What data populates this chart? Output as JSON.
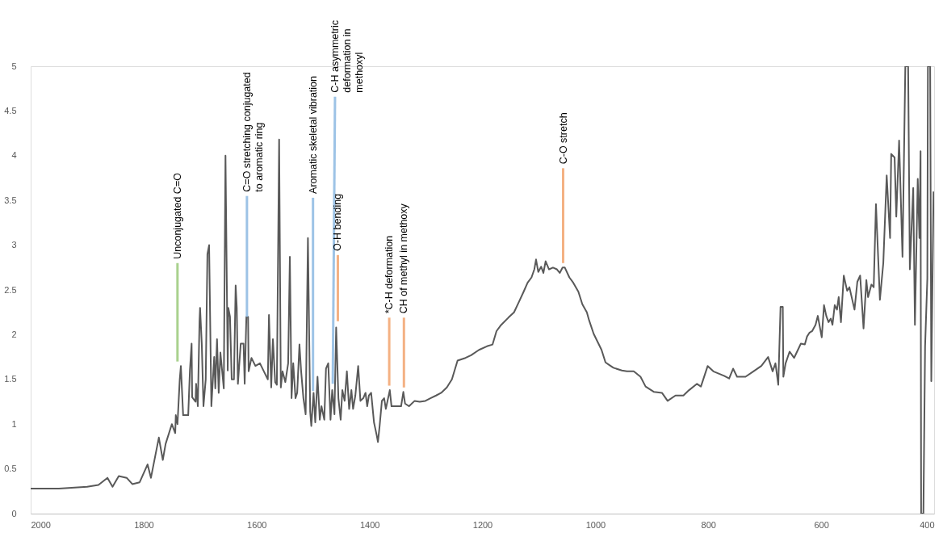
{
  "chart_data": {
    "type": "line",
    "xlim": [
      2000,
      400
    ],
    "xticks": [
      2000,
      1800,
      1600,
      1400,
      1200,
      1000,
      800,
      600,
      400
    ],
    "ylim": [
      0,
      5
    ],
    "yticks": [
      0,
      0.5,
      1,
      1.5,
      2,
      2.5,
      3,
      3.5,
      4,
      4.5,
      5
    ],
    "grid": false,
    "marker": "none",
    "line_style": "solid",
    "series": [
      {
        "color": "#595959",
        "x": [
          2000,
          1997,
          1950,
          1900,
          1880,
          1864,
          1855,
          1844,
          1830,
          1820,
          1807,
          1793,
          1787,
          1773,
          1766,
          1761,
          1750,
          1744,
          1743,
          1740,
          1736,
          1734,
          1730,
          1725,
          1721,
          1718,
          1715,
          1714,
          1708,
          1707,
          1704,
          1701,
          1700,
          1697,
          1694,
          1690,
          1687,
          1684,
          1680,
          1675,
          1673,
          1670,
          1667,
          1664,
          1658,
          1655,
          1651,
          1650,
          1647,
          1644,
          1640,
          1637,
          1635,
          1633,
          1628,
          1623,
          1621,
          1618,
          1615,
          1614,
          1609,
          1602,
          1594,
          1587,
          1580,
          1578,
          1574,
          1571,
          1567,
          1564,
          1560,
          1557,
          1554,
          1549,
          1544,
          1541,
          1538,
          1535,
          1531,
          1528,
          1524,
          1521,
          1517,
          1513,
          1509,
          1505,
          1503,
          1499,
          1496,
          1492,
          1488,
          1485,
          1480,
          1477,
          1473,
          1469,
          1466,
          1462,
          1459,
          1455,
          1451,
          1448,
          1444,
          1440,
          1436,
          1432,
          1429,
          1425,
          1420,
          1416,
          1411,
          1407,
          1404,
          1401,
          1397,
          1392,
          1387,
          1385,
          1382,
          1378,
          1374,
          1371,
          1364,
          1361,
          1354,
          1344,
          1340,
          1337,
          1330,
          1320,
          1311,
          1301,
          1292,
          1282,
          1273,
          1263,
          1254,
          1244,
          1230,
          1220,
          1206,
          1192,
          1182,
          1175,
          1168,
          1154,
          1144,
          1135,
          1127,
          1120,
          1113,
          1108,
          1105,
          1101,
          1096,
          1092,
          1088,
          1082,
          1075,
          1068,
          1063,
          1058,
          1054,
          1046,
          1039,
          1030,
          1023,
          1015,
          1011,
          1003,
          996,
          989,
          982,
          975,
          968,
          953,
          944,
          932,
          920,
          911,
          896,
          882,
          872,
          858,
          844,
          834,
          820,
          813,
          801,
          791,
          772,
          763,
          756,
          749,
          734,
          720,
          706,
          694,
          686,
          681,
          676,
          672,
          668,
          667,
          663,
          656,
          648,
          636,
          629,
          625,
          621,
          616,
          610,
          606,
          599,
          595,
          591,
          587,
          583,
          580,
          576,
          572,
          569,
          565,
          560,
          554,
          550,
          541,
          536,
          531,
          525,
          520,
          517,
          511,
          507,
          503,
          496,
          490,
          484,
          478,
          476,
          470,
          467,
          462,
          456,
          451,
          446,
          443,
          437,
          434,
          429,
          426,
          424,
          423,
          419,
          416,
          412,
          411,
          407,
          405,
          401
        ],
        "values": [
          0.28,
          0.28,
          0.28,
          0.3,
          0.32,
          0.4,
          0.3,
          0.42,
          0.4,
          0.33,
          0.35,
          0.55,
          0.4,
          0.85,
          0.6,
          0.78,
          1.0,
          0.9,
          1.1,
          1.0,
          1.5,
          1.65,
          1.1,
          1.1,
          1.1,
          1.6,
          1.9,
          1.3,
          1.25,
          1.45,
          1.2,
          2.15,
          2.3,
          1.9,
          1.2,
          1.5,
          2.9,
          3.0,
          1.2,
          1.75,
          1.4,
          1.95,
          1.35,
          1.8,
          1.4,
          4.0,
          1.6,
          2.3,
          2.2,
          1.5,
          1.5,
          2.55,
          2.3,
          1.45,
          1.9,
          1.9,
          1.45,
          2.2,
          2.2,
          1.59,
          1.74,
          1.65,
          1.68,
          1.59,
          1.5,
          2.22,
          1.41,
          1.95,
          1.47,
          1.44,
          4.18,
          1.41,
          1.59,
          1.47,
          1.68,
          2.87,
          1.29,
          1.68,
          1.29,
          1.35,
          1.89,
          1.59,
          1.29,
          1.11,
          3.08,
          1.14,
          0.98,
          1.35,
          1.02,
          1.53,
          1.05,
          1.2,
          1.05,
          1.62,
          1.68,
          1.05,
          1.38,
          1.11,
          2.08,
          1.29,
          1.05,
          1.38,
          1.26,
          1.59,
          1.17,
          1.38,
          1.17,
          1.32,
          1.65,
          1.26,
          1.29,
          1.35,
          1.2,
          1.32,
          1.35,
          1.02,
          0.87,
          0.8,
          0.98,
          1.26,
          1.29,
          1.17,
          1.38,
          1.2,
          1.2,
          1.2,
          1.36,
          1.23,
          1.2,
          1.26,
          1.25,
          1.26,
          1.29,
          1.32,
          1.35,
          1.41,
          1.5,
          1.71,
          1.74,
          1.77,
          1.83,
          1.87,
          1.89,
          2.04,
          2.1,
          2.19,
          2.25,
          2.37,
          2.48,
          2.58,
          2.64,
          2.73,
          2.84,
          2.7,
          2.76,
          2.69,
          2.82,
          2.73,
          2.75,
          2.73,
          2.69,
          2.75,
          2.75,
          2.64,
          2.58,
          2.48,
          2.34,
          2.25,
          2.16,
          2.01,
          1.92,
          1.83,
          1.69,
          1.66,
          1.63,
          1.6,
          1.59,
          1.59,
          1.53,
          1.42,
          1.36,
          1.35,
          1.26,
          1.32,
          1.32,
          1.38,
          1.45,
          1.42,
          1.65,
          1.59,
          1.54,
          1.51,
          1.62,
          1.53,
          1.53,
          1.59,
          1.65,
          1.75,
          1.59,
          1.68,
          1.44,
          2.31,
          2.31,
          1.53,
          1.68,
          1.81,
          1.74,
          1.9,
          1.89,
          1.98,
          2.02,
          2.04,
          2.11,
          2.21,
          1.97,
          2.33,
          2.21,
          2.14,
          2.18,
          2.11,
          2.33,
          2.28,
          2.42,
          2.14,
          2.66,
          2.49,
          2.53,
          2.28,
          2.59,
          2.66,
          2.07,
          2.61,
          2.42,
          2.56,
          2.53,
          3.46,
          2.39,
          2.8,
          3.78,
          3.08,
          4.02,
          3.98,
          3.32,
          4.17,
          2.87,
          5,
          5,
          2.73,
          3.64,
          2.11,
          3.74,
          3.08,
          4.05,
          0,
          0,
          1.87,
          2.63,
          5,
          5,
          1.48,
          3.6
        ]
      },
      {
        "color": "#a9d18e",
        "x": [
          1740,
          1740
        ],
        "values": [
          1.7,
          2.8
        ]
      },
      {
        "color": "#9dc3e6",
        "x": [
          1617,
          1617
        ],
        "values": [
          2.2,
          3.55
        ]
      },
      {
        "color": "#9dc3e6",
        "x": [
          1500,
          1500
        ],
        "values": [
          1.37,
          3.53
        ]
      },
      {
        "color": "#9dc3e6",
        "x": [
          1465,
          1461
        ],
        "values": [
          1.45,
          4.66
        ]
      },
      {
        "color": "#f4b183",
        "x": [
          1456,
          1456
        ],
        "values": [
          2.15,
          2.89
        ]
      },
      {
        "color": "#f4b183",
        "x": [
          1365,
          1365
        ],
        "values": [
          1.43,
          2.19
        ]
      },
      {
        "color": "#f4b183",
        "x": [
          1339,
          1339
        ],
        "values": [
          1.41,
          2.19
        ]
      },
      {
        "color": "#f4b183",
        "x": [
          1057,
          1057
        ],
        "values": [
          2.8,
          3.86
        ]
      }
    ],
    "annotations": [
      {
        "text": "Unconjugated C=O",
        "x": 1740,
        "y": 2.8
      },
      {
        "text": "C=O stretching conjugated\nto aromatic ring",
        "x": 1617,
        "y": 3.55
      },
      {
        "text": "Aromatic skeletal  vibration",
        "x": 1500,
        "y": 3.53
      },
      {
        "text": "C-H asymmetric\ndeformation in\nmethoxyl",
        "x": 1461,
        "y": 4.66
      },
      {
        "text": "O-H bending",
        "x": 1456,
        "y": 2.89
      },
      {
        "text": "*C-H deformation",
        "x": 1365,
        "y": 2.19
      },
      {
        "text": "CH of methyl in methoxy",
        "x": 1339,
        "y": 2.19
      },
      {
        "text": "C-O stretch",
        "x": 1057,
        "y": 3.86
      }
    ]
  }
}
